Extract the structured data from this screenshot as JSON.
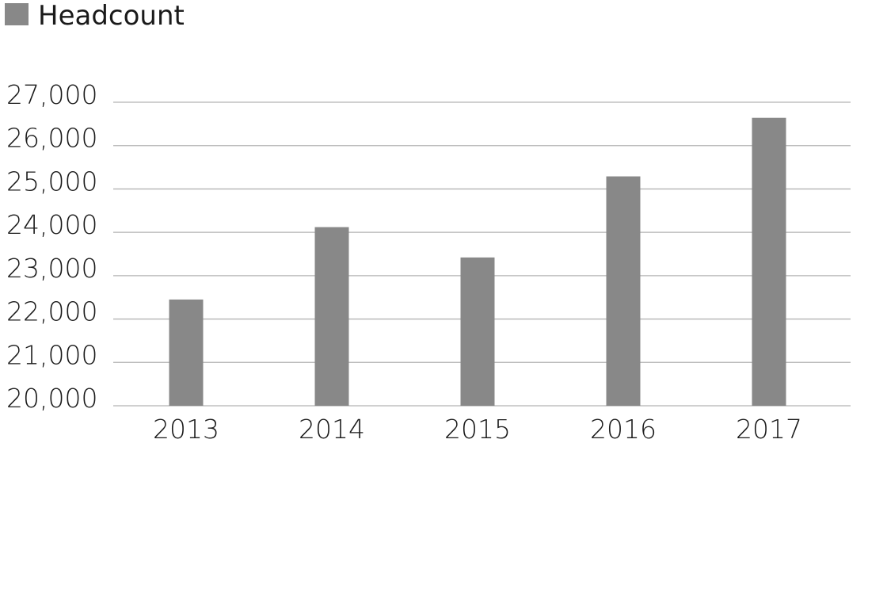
{
  "chart_data": {
    "type": "bar",
    "categories": [
      "2013",
      "2014",
      "2015",
      "2016",
      "2017"
    ],
    "series": [
      {
        "name": "Headcount",
        "values": [
          22450,
          24120,
          23420,
          25290,
          26640
        ]
      }
    ],
    "ylim": [
      20000,
      27000
    ],
    "ytick_values": [
      20000,
      21000,
      22000,
      23000,
      24000,
      25000,
      26000,
      27000
    ],
    "ytick_labels": [
      "20,000",
      "21,000",
      "22,000",
      "23,000",
      "24,000",
      "25,000",
      "26,000",
      "27,000"
    ],
    "grid": true,
    "legend_position": "top-left",
    "colors": {
      "bar": "#888888",
      "grid": "#b3b3b3",
      "text": "#1a1a1a"
    }
  }
}
